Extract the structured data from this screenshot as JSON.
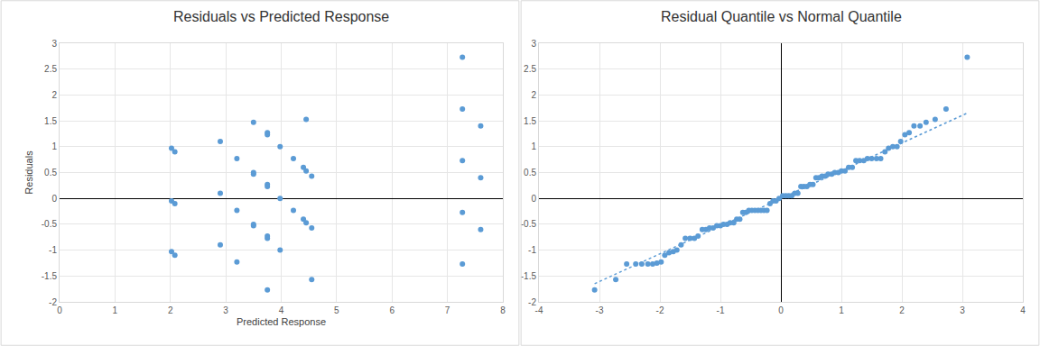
{
  "chart_data": [
    {
      "type": "scatter",
      "title": "Residuals vs Predicted Response",
      "x_label": "Predicted Response",
      "y_label": "Residuals",
      "xlim": [
        0,
        8
      ],
      "xticks": [
        0,
        1,
        2,
        3,
        4,
        5,
        6,
        7,
        8
      ],
      "ylim": [
        -2,
        3
      ],
      "yticks": [
        -2,
        -1.5,
        -1,
        -0.5,
        0,
        0.5,
        1,
        1.5,
        2,
        2.5,
        3
      ],
      "grid": true,
      "series": [
        {
          "type": "scatter",
          "marker": "circle",
          "color": "#5b9bd5",
          "x": [
            2.02,
            2.02,
            2.02,
            2.08,
            2.08,
            2.08,
            2.9,
            2.9,
            2.9,
            3.2,
            3.2,
            3.2,
            3.5,
            3.5,
            3.5,
            3.5,
            3.5,
            3.75,
            3.75,
            3.75,
            3.75,
            3.75,
            3.75,
            3.75,
            3.98,
            3.98,
            3.98,
            4.22,
            4.22,
            4.4,
            4.4,
            4.45,
            4.45,
            4.45,
            4.55,
            4.55,
            4.55,
            7.27,
            7.27,
            7.27,
            7.27,
            7.27,
            7.6,
            7.6,
            7.6
          ],
          "values": [
            0.97,
            -0.05,
            -1.03,
            0.9,
            -0.1,
            -1.1,
            1.1,
            0.1,
            -0.9,
            0.77,
            -0.23,
            -1.23,
            1.47,
            0.5,
            0.47,
            -0.5,
            -0.53,
            1.27,
            1.23,
            0.27,
            0.23,
            -0.73,
            -0.77,
            -1.77,
            1.0,
            0.0,
            -1.0,
            0.77,
            -0.23,
            0.6,
            -0.4,
            1.53,
            0.53,
            -0.47,
            0.43,
            -0.57,
            -1.57,
            2.73,
            1.73,
            0.73,
            -0.27,
            -1.27,
            1.4,
            0.4,
            -0.6
          ]
        }
      ]
    },
    {
      "type": "scatter",
      "title": "Residual Quantile vs Normal Quantile",
      "xlim": [
        -4,
        4
      ],
      "xticks": [
        -4,
        -3,
        -2,
        -1,
        0,
        1,
        2,
        3,
        4
      ],
      "ylim": [
        -2,
        3
      ],
      "yticks": [
        -2,
        -1.5,
        -1,
        -0.5,
        0,
        0.5,
        1,
        1.5,
        2,
        2.5,
        3
      ],
      "grid": true,
      "series": [
        {
          "type": "scatter",
          "marker": "circle",
          "color": "#5b9bd5",
          "x": [
            -3.08,
            -2.73,
            -2.55,
            -2.4,
            -2.3,
            -2.2,
            -2.12,
            -2.05,
            -1.98,
            -1.92,
            -1.85,
            -1.78,
            -1.72,
            -1.65,
            -1.58,
            -1.5,
            -1.43,
            -1.37,
            -1.3,
            -1.24,
            -1.18,
            -1.12,
            -1.06,
            -1.0,
            -0.95,
            -0.89,
            -0.84,
            -0.78,
            -0.73,
            -0.68,
            -0.63,
            -0.58,
            -0.53,
            -0.48,
            -0.43,
            -0.38,
            -0.33,
            -0.28,
            -0.23,
            -0.18,
            -0.13,
            -0.08,
            -0.03,
            0.03,
            0.08,
            0.13,
            0.18,
            0.23,
            0.28,
            0.33,
            0.38,
            0.43,
            0.48,
            0.53,
            0.58,
            0.63,
            0.68,
            0.73,
            0.78,
            0.84,
            0.89,
            0.95,
            1.0,
            1.06,
            1.12,
            1.18,
            1.24,
            1.3,
            1.37,
            1.43,
            1.5,
            1.58,
            1.65,
            1.72,
            1.78,
            1.85,
            1.92,
            1.98,
            2.05,
            2.12,
            2.2,
            2.3,
            2.4,
            2.55,
            2.73,
            3.08
          ],
          "values": [
            -1.77,
            -1.57,
            -1.27,
            -1.27,
            -1.27,
            -1.27,
            -1.27,
            -1.25,
            -1.23,
            -1.1,
            -1.05,
            -1.03,
            -1.0,
            -0.9,
            -0.77,
            -0.77,
            -0.77,
            -0.73,
            -0.6,
            -0.6,
            -0.57,
            -0.57,
            -0.53,
            -0.53,
            -0.5,
            -0.5,
            -0.47,
            -0.47,
            -0.4,
            -0.4,
            -0.27,
            -0.27,
            -0.23,
            -0.23,
            -0.23,
            -0.23,
            -0.23,
            -0.23,
            -0.23,
            -0.1,
            -0.05,
            -0.05,
            0.0,
            0.05,
            0.05,
            0.05,
            0.05,
            0.1,
            0.1,
            0.23,
            0.23,
            0.23,
            0.27,
            0.27,
            0.4,
            0.4,
            0.43,
            0.43,
            0.47,
            0.47,
            0.5,
            0.5,
            0.53,
            0.53,
            0.6,
            0.6,
            0.73,
            0.73,
            0.73,
            0.77,
            0.77,
            0.77,
            0.77,
            0.9,
            0.97,
            1.0,
            1.0,
            1.1,
            1.23,
            1.27,
            1.4,
            1.4,
            1.47,
            1.53,
            1.73,
            2.73
          ]
        },
        {
          "type": "line",
          "line_style": "dotted",
          "color": "#5b9bd5",
          "x": [
            -3.08,
            3.08
          ],
          "values": [
            -1.65,
            1.65
          ]
        }
      ]
    }
  ]
}
